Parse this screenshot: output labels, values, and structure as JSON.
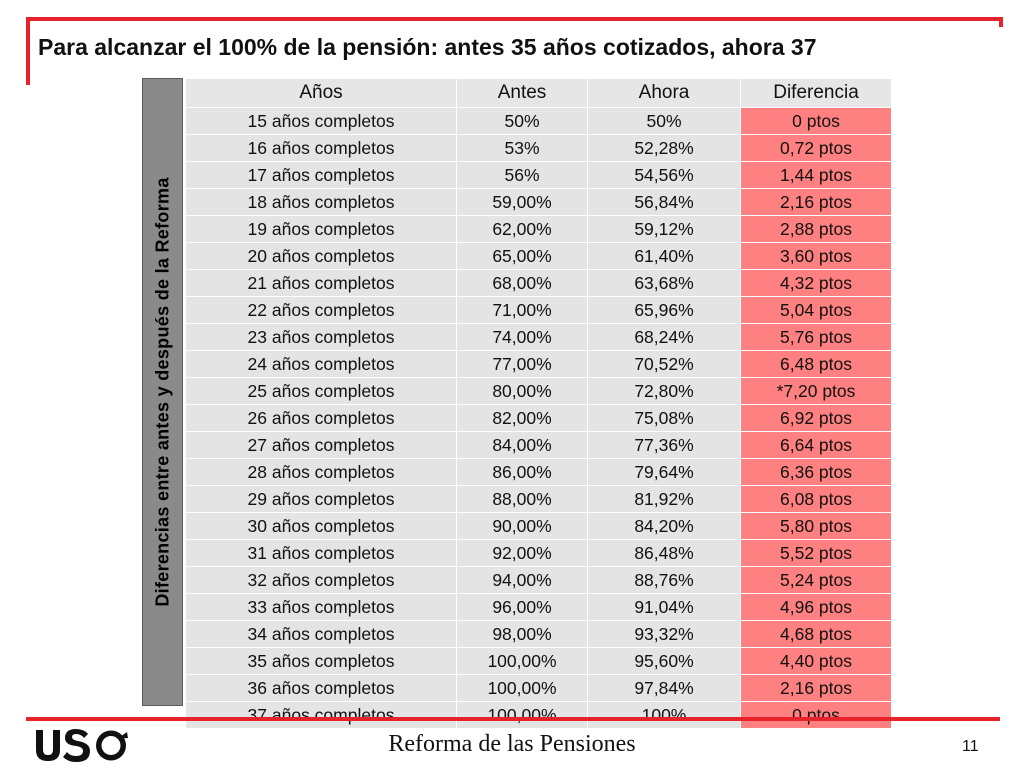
{
  "slide": {
    "title": "Para alcanzar el 100% de la pensión: antes 35 años cotizados, ahora 37",
    "side_label": "Diferencias entre antes y después de la Reforma",
    "footer_title": "Reforma de las Pensiones",
    "page_number": "11",
    "logo_text": "USO"
  },
  "colors": {
    "accent_red": "#e8222a",
    "difference_cell": "#ff8080",
    "cell_gray": "#e4e4e4",
    "side_label_gray": "#8a8a8a"
  },
  "table": {
    "headers": [
      "Años",
      "Antes",
      "Ahora",
      "Diferencia"
    ],
    "rows": [
      [
        "15 años completos",
        "50%",
        "50%",
        "0 ptos"
      ],
      [
        "16 años completos",
        "53%",
        "52,28%",
        "0,72 ptos"
      ],
      [
        "17 años completos",
        "56%",
        "54,56%",
        "1,44 ptos"
      ],
      [
        "18 años completos",
        "59,00%",
        "56,84%",
        "2,16 ptos"
      ],
      [
        "19 años completos",
        "62,00%",
        "59,12%",
        "2,88 ptos"
      ],
      [
        "20 años completos",
        "65,00%",
        "61,40%",
        "3,60 ptos"
      ],
      [
        "21 años completos",
        "68,00%",
        "63,68%",
        "4,32 ptos"
      ],
      [
        "22 años completos",
        "71,00%",
        "65,96%",
        "5,04 ptos"
      ],
      [
        "23 años completos",
        "74,00%",
        "68,24%",
        "5,76 ptos"
      ],
      [
        "24 años completos",
        "77,00%",
        "70,52%",
        "6,48 ptos"
      ],
      [
        "25 años completos",
        "80,00%",
        "72,80%",
        "*7,20 ptos"
      ],
      [
        "26 años completos",
        "82,00%",
        "75,08%",
        "6,92 ptos"
      ],
      [
        "27 años completos",
        "84,00%",
        "77,36%",
        "6,64 ptos"
      ],
      [
        "28 años completos",
        "86,00%",
        "79,64%",
        "6,36 ptos"
      ],
      [
        "29 años completos",
        "88,00%",
        "81,92%",
        "6,08 ptos"
      ],
      [
        "30 años completos",
        "90,00%",
        "84,20%",
        "5,80 ptos"
      ],
      [
        "31 años completos",
        "92,00%",
        "86,48%",
        "5,52 ptos"
      ],
      [
        "32 años completos",
        "94,00%",
        "88,76%",
        "5,24 ptos"
      ],
      [
        "33 años completos",
        "96,00%",
        "91,04%",
        "4,96 ptos"
      ],
      [
        "34 años completos",
        "98,00%",
        "93,32%",
        "4,68 ptos"
      ],
      [
        "35 años completos",
        "100,00%",
        "95,60%",
        "4,40 ptos"
      ],
      [
        "36 años completos",
        "100,00%",
        "97,84%",
        "2,16 ptos"
      ],
      [
        "37 años completos",
        "100,00%",
        "100%",
        "0 ptos"
      ]
    ]
  }
}
